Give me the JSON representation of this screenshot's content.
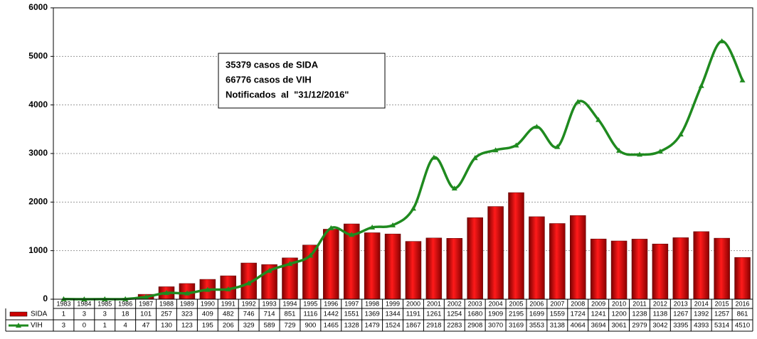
{
  "chart_data": {
    "type": "bar-line",
    "categories": [
      "1983",
      "1984",
      "1985",
      "1986",
      "1987",
      "1988",
      "1989",
      "1990",
      "1991",
      "1992",
      "1993",
      "1994",
      "1995",
      "1996",
      "1997",
      "1998",
      "1999",
      "2000",
      "2001",
      "2002",
      "2003",
      "2004",
      "2005",
      "2006",
      "2007",
      "2008",
      "2009",
      "2010",
      "2011",
      "2012",
      "2013",
      "2014",
      "2015",
      "2016"
    ],
    "series": [
      {
        "name": "SIDA",
        "type": "bar",
        "color": "#cc0000",
        "values": [
          1,
          3,
          3,
          18,
          101,
          257,
          323,
          409,
          482,
          746,
          714,
          851,
          1116,
          1442,
          1551,
          1369,
          1344,
          1191,
          1261,
          1254,
          1680,
          1909,
          2195,
          1699,
          1559,
          1724,
          1241,
          1200,
          1238,
          1138,
          1267,
          1392,
          1257,
          861
        ]
      },
      {
        "name": "VIH",
        "type": "line",
        "color": "#1f8a1f",
        "values": [
          3,
          0,
          1,
          4,
          47,
          130,
          123,
          195,
          206,
          329,
          589,
          729,
          900,
          1465,
          1328,
          1479,
          1524,
          1867,
          2918,
          2283,
          2908,
          3070,
          3169,
          3553,
          3138,
          4064,
          3694,
          3061,
          2979,
          3042,
          3395,
          4393,
          5314,
          4510
        ]
      }
    ],
    "ylim": [
      0,
      6000
    ],
    "yticks": [
      0,
      1000,
      2000,
      3000,
      4000,
      5000,
      6000
    ],
    "grid": true,
    "annotation": [
      "35379 casos de SIDA",
      "66776 casos de VIH",
      "Notificados  al  \"31/12/2016\""
    ]
  }
}
